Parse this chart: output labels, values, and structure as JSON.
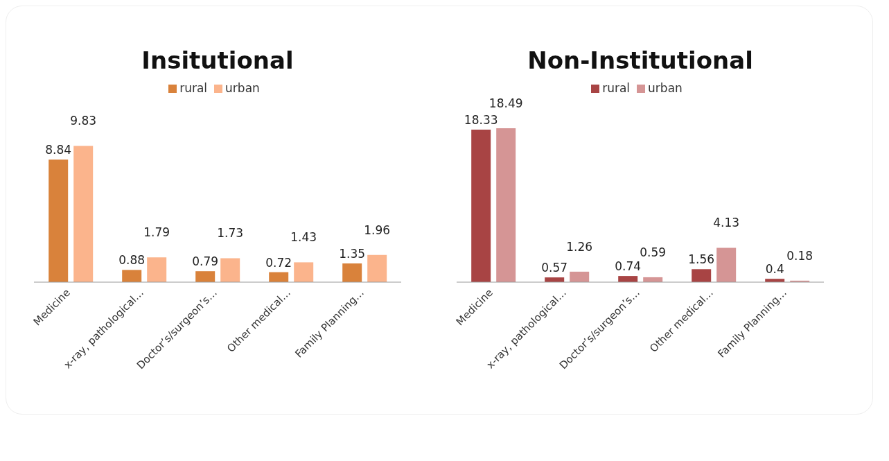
{
  "chart_data": [
    {
      "type": "bar",
      "title": "Insitutional",
      "categories": [
        "Medicine",
        "x-ray, pathological…",
        "Doctor’s/surgeon’s…",
        "Other medical…",
        "Family Planning…"
      ],
      "series": [
        {
          "name": "rural",
          "color": "#d9823b",
          "values": [
            8.84,
            0.88,
            0.79,
            0.72,
            1.35
          ]
        },
        {
          "name": "urban",
          "color": "#fbb48c",
          "values": [
            9.83,
            1.79,
            1.73,
            1.43,
            1.96
          ]
        }
      ],
      "data_labels": true,
      "legend": "top",
      "grid": false
    },
    {
      "type": "bar",
      "title": "Non-Institutional",
      "categories": [
        "Medicine",
        "x-ray, pathological…",
        "Doctor’s/surgeon’s…",
        "Other medical…",
        "Family Planning…"
      ],
      "series": [
        {
          "name": "rural",
          "color": "#a84444",
          "values": [
            18.33,
            0.57,
            0.74,
            1.56,
            0.4
          ]
        },
        {
          "name": "urban",
          "color": "#d59595",
          "values": [
            18.49,
            1.26,
            0.59,
            4.13,
            0.18
          ]
        }
      ],
      "data_labels": true,
      "legend": "top",
      "grid": false
    }
  ]
}
